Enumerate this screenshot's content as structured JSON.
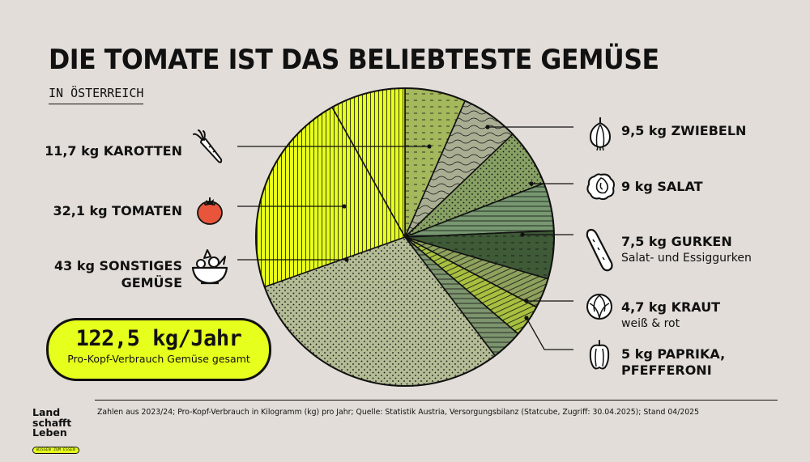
{
  "header": {
    "title": "DIE TOMATE IST DAS BELIEBTESTE GEMÜSE",
    "subtitle": "IN ÖSTERREICH"
  },
  "chart_data": {
    "type": "pie",
    "unit": "kg",
    "total": 122.5,
    "slices": [
      {
        "key": "zwiebeln",
        "label": "9,5 kg ZWIEBELN",
        "value": 9.5,
        "color": "#a4b85c",
        "pattern": "dash"
      },
      {
        "key": "salat_r",
        "label": "",
        "value": 9.0,
        "color": "#a9ae93",
        "pattern": "wave"
      },
      {
        "key": "salat",
        "label": "9 kg SALAT",
        "value": 9.0,
        "color": "#87a063",
        "pattern": "dots"
      },
      {
        "key": "gurken",
        "label": "7,5 kg GURKEN",
        "sublabel": "Salat- und Essiggurken",
        "value": 7.5,
        "color": "#779870",
        "pattern": "hstripe"
      },
      {
        "key": "gurken_d",
        "label": "",
        "value": 7.5,
        "color": "#3f5a37",
        "pattern": "dash"
      },
      {
        "key": "kraut",
        "label": "4,7 kg KRAUT",
        "sublabel": "weiß & rot",
        "value": 4.7,
        "color": "#8ea15d",
        "pattern": "curve"
      },
      {
        "key": "paprika",
        "label": "5 kg PAPRIKA, PFEFFERONI",
        "value": 5.0,
        "color": "#a7c040",
        "pattern": "curve"
      },
      {
        "key": "paprika_s",
        "label": "",
        "value": 4.9,
        "color": "#7d956e",
        "pattern": "hstripe"
      },
      {
        "key": "sonstiges",
        "label": "43 kg SONSTIGES GEMÜSE",
        "value": 43.0,
        "color": "#b4bc96",
        "pattern": "dots"
      },
      {
        "key": "tomaten",
        "label": "32,1 kg TOMATEN",
        "value": 32.1,
        "color": "#e6ff1c",
        "pattern": "vstripe"
      },
      {
        "key": "karotten",
        "label": "11,7 kg KAROTTEN",
        "value": 11.7,
        "color": "#e6ff1c",
        "pattern": "vstripe"
      }
    ]
  },
  "labels_left": {
    "karotten": "11,7 kg KAROTTEN",
    "tomaten": "32,1 kg TOMATEN",
    "sonstiges_1": "43 kg SONSTIGES",
    "sonstiges_2": "GEMÜSE"
  },
  "labels_right": {
    "zwiebeln": "9,5 kg ZWIEBELN",
    "salat": "9 kg SALAT",
    "gurken": "7,5 kg GURKEN",
    "gurken_sub": "Salat- und Essiggurken",
    "kraut": "4,7 kg KRAUT",
    "kraut_sub": "weiß & rot",
    "paprika_1": "5 kg PAPRIKA,",
    "paprika_2": "PFEFFERONI"
  },
  "total": {
    "value": "122,5 kg/Jahr",
    "caption": "Pro-Kopf-Verbrauch Gemüse gesamt"
  },
  "footer": {
    "note": "Zahlen aus 2023/24; Pro-Kopf-Verbrauch in Kilogramm (kg) pro Jahr; Quelle: Statistik Austria, Versorgungsbilanz (Statcube, Zugriff: 30.04.2025); Stand 04/2025",
    "logo_line1": "Land",
    "logo_line2": "schafft",
    "logo_line3": "Leben",
    "logo_tag": "WISSEN ZUM ESSEN"
  },
  "colors": {
    "background": "#e2ddd8",
    "accent": "#e6ff1c",
    "tomato": "#e8553a"
  },
  "icons": [
    "carrot-icon",
    "tomato-icon",
    "vegetable-bowl-icon",
    "onion-icon",
    "lettuce-icon",
    "cucumber-icon",
    "cabbage-icon",
    "pepper-icon"
  ]
}
